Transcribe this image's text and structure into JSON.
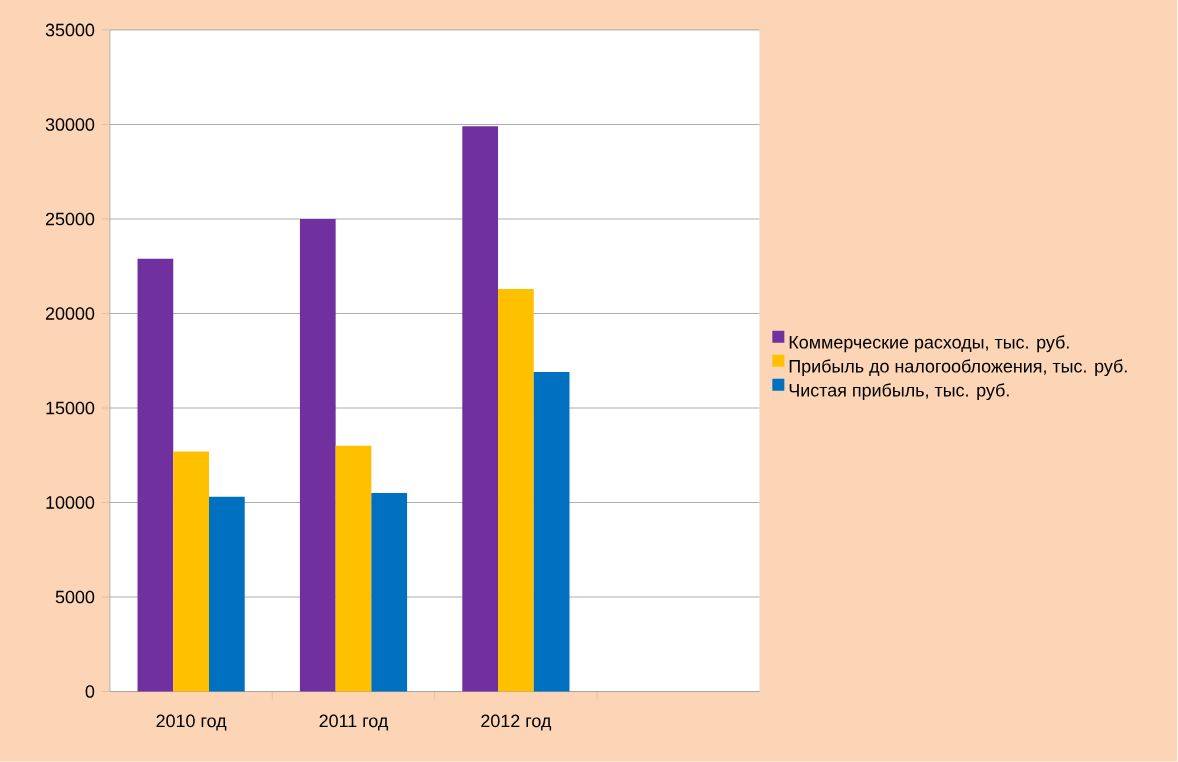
{
  "chart_data": {
    "type": "bar",
    "categories": [
      "2010 год",
      "2011 год",
      "2012 год",
      null
    ],
    "series": [
      {
        "name": "Коммерческие расходы, тыс. руб.",
        "color": "#7030a0",
        "values": [
          22900,
          25000,
          29900,
          null
        ]
      },
      {
        "name": "Прибыль до налогообложения, тыс. руб.",
        "color": "#ffc000",
        "values": [
          12700,
          13000,
          21300,
          null
        ]
      },
      {
        "name": "Чистая прибыль, тыс. руб.",
        "color": "#0070c0",
        "values": [
          10300,
          10500,
          16900,
          null
        ]
      }
    ],
    "ylim": [
      0,
      35000
    ],
    "yticks": [
      0,
      5000,
      10000,
      15000,
      20000,
      25000,
      30000,
      35000
    ],
    "grid": "y",
    "legend": "right"
  }
}
